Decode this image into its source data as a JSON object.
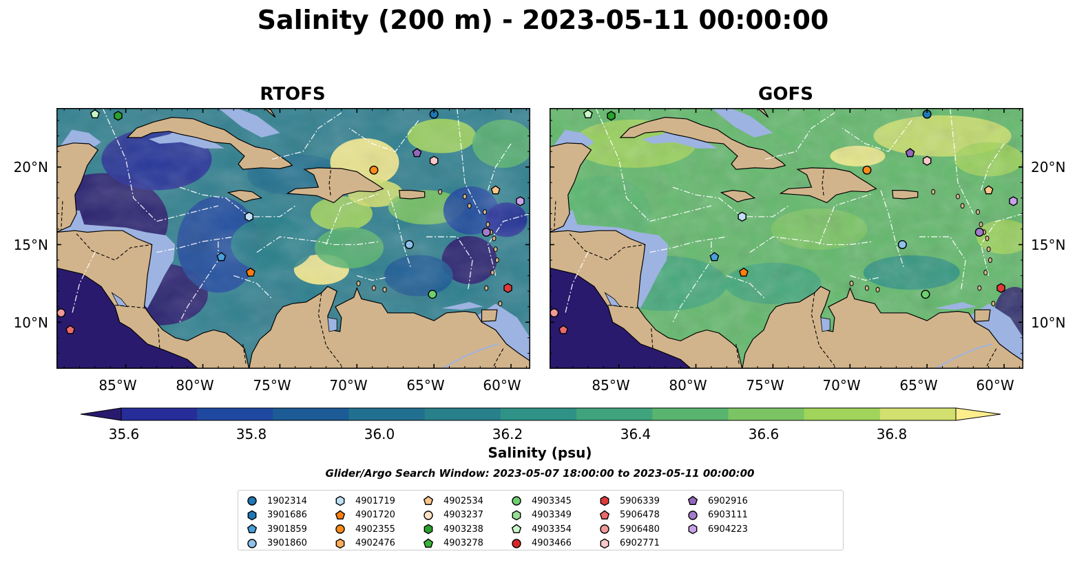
{
  "title": "Salinity (200 m) - 2023-05-11 00:00:00",
  "panels": [
    {
      "title": "RTOFS",
      "mode": "rtofs"
    },
    {
      "title": "GOFS",
      "mode": "gofs"
    }
  ],
  "lon_ticks": [
    "85°W",
    "80°W",
    "75°W",
    "70°W",
    "65°W",
    "60°W"
  ],
  "lat_ticks": [
    "20°N",
    "15°N",
    "10°N"
  ],
  "colorbar": {
    "label": "Salinity (psu)",
    "min": 35.5,
    "max": 37.0,
    "step": 0.1,
    "ticks": [
      "35.6",
      "35.8",
      "36.0",
      "36.2",
      "36.4",
      "36.6",
      "36.8"
    ],
    "colors": [
      "#2a1a6e",
      "#262d99",
      "#1f49a0",
      "#1c5b96",
      "#22708f",
      "#27808a",
      "#2f9286",
      "#3fa47d",
      "#58b46f",
      "#7cc463",
      "#a1d45a",
      "#d1e06e",
      "#fdee8d"
    ],
    "extend": "both"
  },
  "search_window": "Glider/Argo Search Window: 2023-05-07 18:00:00 to 2023-05-11 00:00:00",
  "colors": {
    "land": "#d2b48c",
    "shelf": "#9db3e1",
    "border": "#000000",
    "eez": "#ffffff"
  },
  "floats": [
    {
      "id": "1902314",
      "marker": "circle",
      "color": "#1f77b4",
      "lon": -65.0,
      "lat": 23.4
    },
    {
      "id": "3901686",
      "marker": "hexagon",
      "color": "#1f77b4",
      "lon": null,
      "lat": null
    },
    {
      "id": "3901859",
      "marker": "pentagon",
      "color": "#4a9fd8",
      "lon": -78.8,
      "lat": 14.2
    },
    {
      "id": "3901860",
      "marker": "circle",
      "color": "#8fc1ea",
      "lon": -66.6,
      "lat": 15.0
    },
    {
      "id": "4901719",
      "marker": "hexagon",
      "color": "#bfe0f5",
      "lon": -77.0,
      "lat": 16.8
    },
    {
      "id": "4901720",
      "marker": "pentagon",
      "color": "#ff7f0e",
      "lon": -76.9,
      "lat": 13.2
    },
    {
      "id": "4902355",
      "marker": "circle",
      "color": "#ff8c1a",
      "lon": -68.9,
      "lat": 19.8
    },
    {
      "id": "4902476",
      "marker": "hexagon",
      "color": "#ffab58",
      "lon": null,
      "lat": null
    },
    {
      "id": "4902534",
      "marker": "pentagon",
      "color": "#ffc58a",
      "lon": -61.0,
      "lat": 18.5
    },
    {
      "id": "4903237",
      "marker": "circle",
      "color": "#ffe2c5",
      "lon": null,
      "lat": null
    },
    {
      "id": "4903238",
      "marker": "hexagon",
      "color": "#2ca02c",
      "lon": -85.5,
      "lat": 23.3
    },
    {
      "id": "4903278",
      "marker": "pentagon",
      "color": "#3bb33b",
      "lon": null,
      "lat": null
    },
    {
      "id": "4903345",
      "marker": "circle",
      "color": "#6fcf6f",
      "lon": -65.1,
      "lat": 11.8
    },
    {
      "id": "4903349",
      "marker": "hexagon",
      "color": "#95de95",
      "lon": null,
      "lat": null
    },
    {
      "id": "4903354",
      "marker": "pentagon",
      "color": "#c7f5c7",
      "lon": -87.0,
      "lat": 23.4
    },
    {
      "id": "4903466",
      "marker": "circle",
      "color": "#d62728",
      "lon": null,
      "lat": null
    },
    {
      "id": "5906339",
      "marker": "hexagon",
      "color": "#e03a3b",
      "lon": -60.2,
      "lat": 12.2
    },
    {
      "id": "5906478",
      "marker": "pentagon",
      "color": "#ea6a6a",
      "lon": -88.6,
      "lat": 9.5
    },
    {
      "id": "5906480",
      "marker": "circle",
      "color": "#f09a9a",
      "lon": -89.2,
      "lat": 10.6
    },
    {
      "id": "6902771",
      "marker": "hexagon",
      "color": "#f8c8c8",
      "lon": -65.0,
      "lat": 20.4
    },
    {
      "id": "6902916",
      "marker": "pentagon",
      "color": "#9467bd",
      "lon": -66.1,
      "lat": 20.9
    },
    {
      "id": "6903111",
      "marker": "circle",
      "color": "#a27ccc",
      "lon": -61.6,
      "lat": 15.8
    },
    {
      "id": "6904223",
      "marker": "hexagon",
      "color": "#c8a2e8",
      "lon": -59.4,
      "lat": 17.8
    }
  ]
}
